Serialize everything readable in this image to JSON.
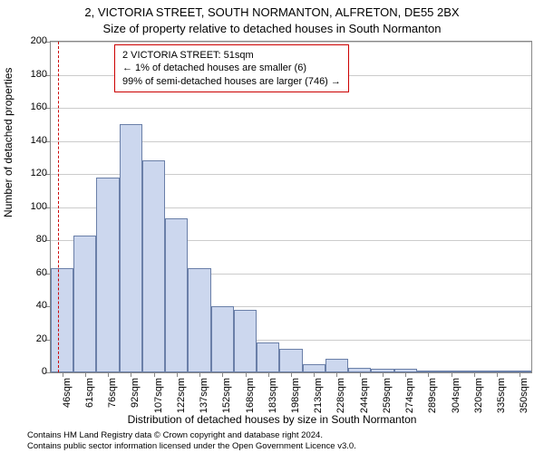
{
  "title_line1": "2, VICTORIA STREET, SOUTH NORMANTON, ALFRETON, DE55 2BX",
  "title_line2": "Size of property relative to detached houses in South Normanton",
  "y_axis_label": "Number of detached properties",
  "x_axis_label": "Distribution of detached houses by size in South Normanton",
  "chart": {
    "type": "histogram",
    "ylim": [
      0,
      200
    ],
    "ytick_step": 20,
    "bar_fill": "#ccd7ee",
    "bar_stroke": "#6a7fa8",
    "grid_color": "#cccccc",
    "axis_color": "#888888",
    "background": "#ffffff",
    "categories": [
      "46sqm",
      "61sqm",
      "76sqm",
      "92sqm",
      "107sqm",
      "122sqm",
      "137sqm",
      "152sqm",
      "168sqm",
      "183sqm",
      "198sqm",
      "213sqm",
      "228sqm",
      "244sqm",
      "259sqm",
      "274sqm",
      "289sqm",
      "304sqm",
      "320sqm",
      "335sqm",
      "350sqm"
    ],
    "values": [
      63,
      83,
      118,
      150,
      128,
      93,
      63,
      40,
      38,
      18,
      14,
      5,
      8,
      3,
      2,
      2,
      0,
      1,
      1,
      1,
      1
    ]
  },
  "annotation": {
    "line1": "2 VICTORIA STREET: 51sqm",
    "line2": "← 1% of detached houses are smaller (6)",
    "line3": "99% of semi-detached houses are larger (746) →",
    "border_color": "#cc0000",
    "marker_position_index": 0.33
  },
  "footer_line1": "Contains HM Land Registry data © Crown copyright and database right 2024.",
  "footer_line2": "Contains public sector information licensed under the Open Government Licence v3.0."
}
